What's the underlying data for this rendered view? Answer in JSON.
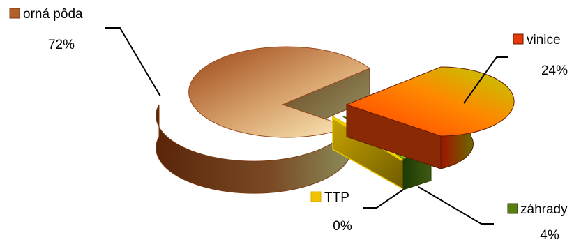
{
  "chart_data": {
    "type": "pie",
    "title": "",
    "legend": "none",
    "slices": [
      {
        "label": "orná pôda",
        "value": 72,
        "display": "72%",
        "color": "#a65a2a"
      },
      {
        "label": "vinice",
        "value": 24,
        "display": "24%",
        "color": "#e0440e"
      },
      {
        "label": "záhrady",
        "value": 4,
        "display": "4%",
        "color": "#5a7d12"
      },
      {
        "label": "TTP",
        "value": 0,
        "display": "0%",
        "color": "#f2c200"
      }
    ]
  }
}
